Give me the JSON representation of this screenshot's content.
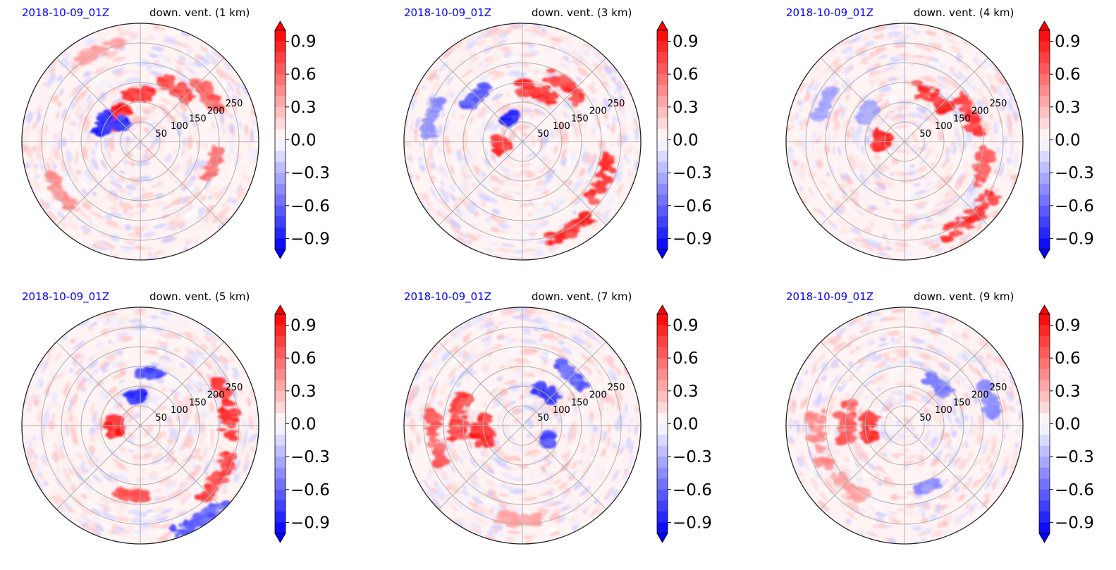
{
  "chart_data": [
    {
      "type": "heatmap",
      "projection": "polar",
      "date_label": "2018-10-09_01Z",
      "title": "down. vent. (1 km)",
      "radial_ticks": [
        "50",
        "100",
        "150",
        "200",
        "250"
      ],
      "colorbar": {
        "ticks": [
          "0.9",
          "0.6",
          "0.3",
          "0.0",
          "−0.3",
          "−0.6",
          "−0.9"
        ],
        "range": [
          -1.0,
          1.0
        ],
        "extend": "both",
        "colormap": "bwr"
      },
      "grid": true
    },
    {
      "type": "heatmap",
      "projection": "polar",
      "date_label": "2018-10-09_01Z",
      "title": "down. vent. (3 km)",
      "radial_ticks": [
        "50",
        "100",
        "150",
        "200",
        "250"
      ],
      "colorbar": {
        "ticks": [
          "0.9",
          "0.6",
          "0.3",
          "0.0",
          "−0.3",
          "−0.6",
          "−0.9"
        ],
        "range": [
          -1.0,
          1.0
        ],
        "extend": "both",
        "colormap": "bwr"
      },
      "grid": true
    },
    {
      "type": "heatmap",
      "projection": "polar",
      "date_label": "2018-10-09_01Z",
      "title": "down. vent. (4 km)",
      "radial_ticks": [
        "50",
        "100",
        "150",
        "200",
        "250"
      ],
      "colorbar": {
        "ticks": [
          "0.9",
          "0.6",
          "0.3",
          "0.0",
          "−0.3",
          "−0.6",
          "−0.9"
        ],
        "range": [
          -1.0,
          1.0
        ],
        "extend": "both",
        "colormap": "bwr"
      },
      "grid": true
    },
    {
      "type": "heatmap",
      "projection": "polar",
      "date_label": "2018-10-09_01Z",
      "title": "down. vent. (5 km)",
      "radial_ticks": [
        "50",
        "100",
        "150",
        "200",
        "250"
      ],
      "colorbar": {
        "ticks": [
          "0.9",
          "0.6",
          "0.3",
          "0.0",
          "−0.3",
          "−0.6",
          "−0.9"
        ],
        "range": [
          -1.0,
          1.0
        ],
        "extend": "both",
        "colormap": "bwr"
      },
      "grid": true
    },
    {
      "type": "heatmap",
      "projection": "polar",
      "date_label": "2018-10-09_01Z",
      "title": "down. vent. (7 km)",
      "radial_ticks": [
        "50",
        "100",
        "150",
        "200",
        "250"
      ],
      "colorbar": {
        "ticks": [
          "0.9",
          "0.6",
          "0.3",
          "0.0",
          "−0.3",
          "−0.6",
          "−0.9"
        ],
        "range": [
          -1.0,
          1.0
        ],
        "extend": "both",
        "colormap": "bwr"
      },
      "grid": true
    },
    {
      "type": "heatmap",
      "projection": "polar",
      "date_label": "2018-10-09_01Z",
      "title": "down. vent. (9 km)",
      "radial_ticks": [
        "50",
        "100",
        "150",
        "200",
        "250"
      ],
      "colorbar": {
        "ticks": [
          "0.9",
          "0.6",
          "0.3",
          "0.0",
          "−0.3",
          "−0.6",
          "−0.9"
        ],
        "range": [
          -1.0,
          1.0
        ],
        "extend": "both",
        "colormap": "bwr"
      },
      "grid": true
    }
  ],
  "colors": {
    "positive": "#ff0000",
    "negative": "#0000ff",
    "date_label": "#0000ff",
    "grid": "#b0b0b0"
  }
}
